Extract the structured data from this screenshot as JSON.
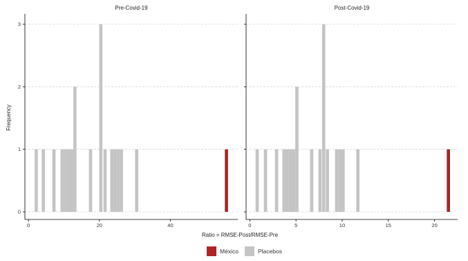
{
  "colors": {
    "mexico": "#b22222",
    "placebos": "#c4c4c4",
    "grid": "#d9d9d9",
    "axis": "#000000"
  },
  "legend": {
    "items": [
      {
        "label": "México",
        "color": "#b22222"
      },
      {
        "label": "Placebos",
        "color": "#c4c4c4"
      }
    ],
    "position": "bottom"
  },
  "chart_data": [
    {
      "type": "bar",
      "title": "Pre-Covid-19",
      "ylabel": "Frequency",
      "xlabel": "Ratio = RMSE-Post/RMSE-Pre",
      "xlim": [
        -1,
        59
      ],
      "ylim": [
        0,
        3
      ],
      "xticks": [
        0,
        20,
        40
      ],
      "yticks": [
        0,
        1,
        2,
        3
      ],
      "grid": "horizontal",
      "bin_width": 0.9,
      "series": [
        {
          "name": "Placebos",
          "bars": [
            {
              "x": 2.2,
              "count": 1
            },
            {
              "x": 4.2,
              "count": 1
            },
            {
              "x": 7.2,
              "count": 1
            },
            {
              "x": 9.5,
              "count": 1
            },
            {
              "x": 10.4,
              "count": 1
            },
            {
              "x": 11.3,
              "count": 1
            },
            {
              "x": 12.2,
              "count": 1
            },
            {
              "x": 13.1,
              "count": 2
            },
            {
              "x": 17.5,
              "count": 1
            },
            {
              "x": 20.4,
              "count": 3
            },
            {
              "x": 21.6,
              "count": 1
            },
            {
              "x": 23.5,
              "count": 1
            },
            {
              "x": 24.4,
              "count": 1
            },
            {
              "x": 25.3,
              "count": 1
            },
            {
              "x": 26.2,
              "count": 1
            },
            {
              "x": 30.5,
              "count": 1
            }
          ]
        },
        {
          "name": "México",
          "bars": [
            {
              "x": 55.8,
              "count": 1
            }
          ]
        }
      ]
    },
    {
      "type": "bar",
      "title": "Post-Covid-19",
      "ylabel": "Frequency",
      "xlabel": "Ratio = RMSE-Post/RMSE-Pre",
      "xlim": [
        -0.4,
        22.5
      ],
      "ylim": [
        0,
        3
      ],
      "xticks": [
        0,
        5,
        10,
        15,
        20
      ],
      "yticks": [
        0,
        1,
        2,
        3
      ],
      "grid": "horizontal",
      "bin_width": 0.35,
      "series": [
        {
          "name": "Placebos",
          "bars": [
            {
              "x": 0.8,
              "count": 1
            },
            {
              "x": 1.7,
              "count": 1
            },
            {
              "x": 2.9,
              "count": 1
            },
            {
              "x": 3.7,
              "count": 1
            },
            {
              "x": 4.05,
              "count": 1
            },
            {
              "x": 4.4,
              "count": 1
            },
            {
              "x": 4.75,
              "count": 1
            },
            {
              "x": 5.1,
              "count": 2
            },
            {
              "x": 6.7,
              "count": 1
            },
            {
              "x": 7.6,
              "count": 1
            },
            {
              "x": 8.0,
              "count": 3
            },
            {
              "x": 8.4,
              "count": 1
            },
            {
              "x": 9.4,
              "count": 1
            },
            {
              "x": 9.75,
              "count": 1
            },
            {
              "x": 10.1,
              "count": 1
            },
            {
              "x": 11.7,
              "count": 1
            }
          ]
        },
        {
          "name": "México",
          "bars": [
            {
              "x": 21.5,
              "count": 1
            }
          ]
        }
      ]
    }
  ]
}
